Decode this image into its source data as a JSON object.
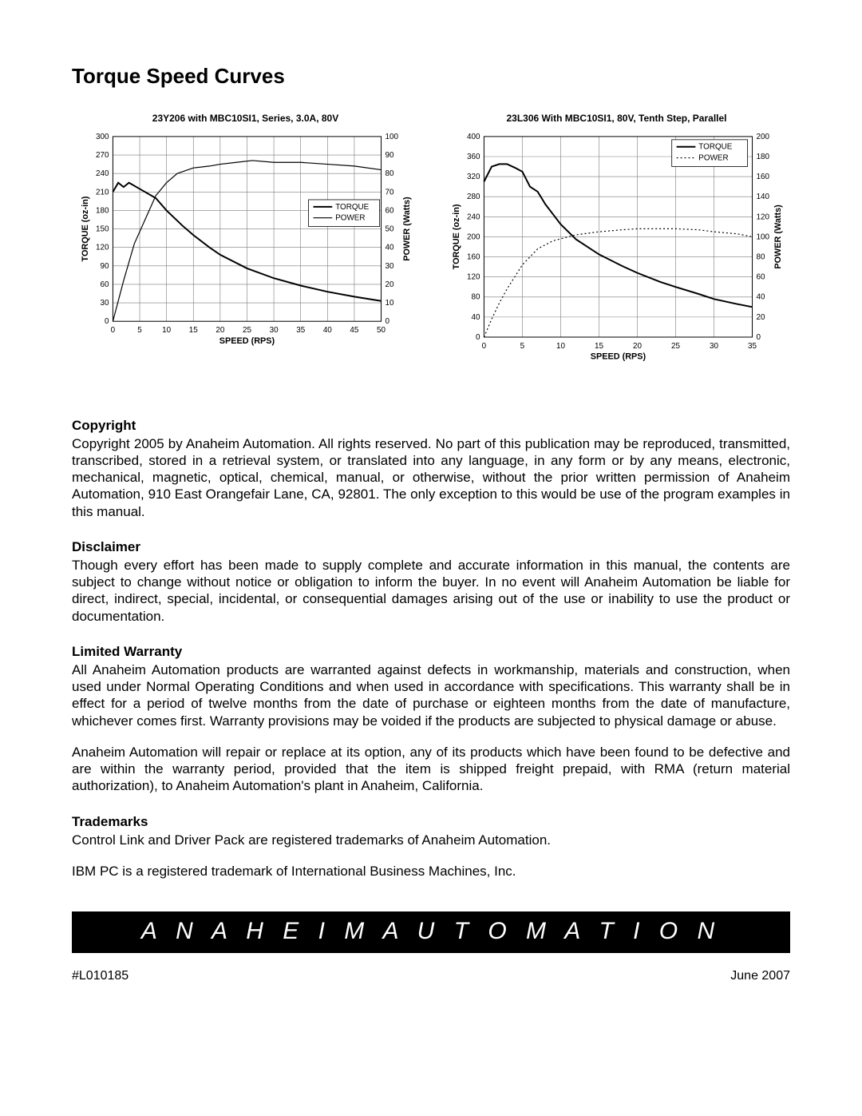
{
  "title": "Torque Speed Curves",
  "chart1": {
    "type": "line",
    "title": "23Y206 with MBC10SI1, Series, 3.0A, 80V",
    "x_axis": {
      "label": "SPEED (RPS)",
      "min": 0,
      "max": 50,
      "step": 5
    },
    "y_left": {
      "label": "TORQUE (oz-in)",
      "min": 0,
      "max": 300,
      "step": 30
    },
    "y_right": {
      "label": "POWER (Watts)",
      "min": 0,
      "max": 100,
      "step": 10
    },
    "legend": {
      "items": [
        "TORQUE",
        "POWER"
      ],
      "position": "inside-right"
    },
    "title_fontsize": 12,
    "axis_label_fontsize": 11,
    "tick_fontsize": 10,
    "torque_color": "#000000",
    "power_color": "#000000",
    "grid_color": "#7a7a7a",
    "background_color": "#ffffff",
    "torque_line_width": 2,
    "power_line_width": 1.2,
    "power_style": "solid",
    "torque_points_x": [
      0,
      1,
      2,
      3,
      5,
      8,
      10,
      13,
      15,
      18,
      20,
      25,
      30,
      35,
      40,
      45,
      50
    ],
    "torque_points_y": [
      210,
      225,
      218,
      225,
      215,
      200,
      180,
      155,
      140,
      120,
      108,
      86,
      70,
      58,
      48,
      40,
      33
    ],
    "power_points_x": [
      0,
      2,
      4,
      6,
      8,
      10,
      12,
      15,
      18,
      20,
      23,
      26,
      30,
      35,
      40,
      45,
      50
    ],
    "power_points_y": [
      0,
      22,
      42,
      55,
      68,
      75,
      80,
      83,
      84,
      85,
      86,
      87,
      86,
      86,
      85,
      84,
      82
    ]
  },
  "chart2": {
    "type": "line",
    "title": "23L306 With MBC10SI1, 80V, Tenth Step, Parallel",
    "x_axis": {
      "label": "SPEED (RPS)",
      "min": 0,
      "max": 35,
      "step": 5
    },
    "y_left": {
      "label": "TORQUE (oz-in)",
      "min": 0,
      "max": 400,
      "step": 40
    },
    "y_right": {
      "label": "POWER (Watts)",
      "min": 0,
      "max": 200,
      "step": 20
    },
    "legend": {
      "items": [
        "TORQUE",
        "POWER"
      ],
      "position": "top-right-box"
    },
    "title_fontsize": 12,
    "axis_label_fontsize": 11,
    "tick_fontsize": 10,
    "torque_color": "#000000",
    "power_color": "#000000",
    "grid_color": "#7a7a7a",
    "background_color": "#ffffff",
    "torque_line_width": 2,
    "power_line_width": 1.2,
    "power_style": "dotted",
    "torque_points_x": [
      0,
      1,
      2,
      3,
      4,
      5,
      6,
      7,
      8,
      9,
      10,
      12,
      15,
      18,
      20,
      23,
      25,
      28,
      30,
      33,
      35
    ],
    "torque_points_y": [
      310,
      340,
      345,
      345,
      338,
      330,
      300,
      290,
      265,
      245,
      225,
      195,
      165,
      142,
      128,
      110,
      100,
      86,
      76,
      66,
      60
    ],
    "power_points_x": [
      0,
      1,
      2,
      3,
      4,
      5,
      6,
      7,
      8,
      9,
      10,
      12,
      15,
      18,
      20,
      23,
      25,
      28,
      30,
      33,
      35
    ],
    "power_points_y": [
      0,
      18,
      34,
      48,
      60,
      72,
      80,
      88,
      92,
      96,
      98,
      102,
      105,
      107,
      108,
      108,
      108,
      107,
      105,
      103,
      100
    ]
  },
  "sections": {
    "copyright_heading": "Copyright",
    "copyright_body": "Copyright 2005 by Anaheim Automation. All rights reserved. No part of this publication may be reproduced, transmitted, transcribed, stored in a retrieval system, or translated into any language, in any form or by any means, electronic, mechanical, magnetic, optical, chemical, manual, or otherwise, without the prior written permission of Anaheim Automation, 910 East Orangefair Lane, CA, 92801. The only exception to this would be use of the program examples in this manual.",
    "disclaimer_heading": "Disclaimer",
    "disclaimer_body": "Though every effort has been made to supply complete and accurate information in this manual, the contents are subject to change without notice or obligation to inform the buyer. In no event will Anaheim Automation be liable for direct, indirect, special, incidental, or consequential damages arising out of the use or inability to use the product or documentation.",
    "warranty_heading": "Limited Warranty",
    "warranty_body1": "All Anaheim Automation products are warranted against defects in  workmanship, materials and construction, when used under Normal Operating Conditions and when used in accordance with specifications. This warranty shall be in effect for a period of twelve months from the date of purchase or eighteen months from the date of manufacture, whichever comes first. Warranty provisions may be voided if the products are subjected to physical damage or abuse.",
    "warranty_body2": "Anaheim Automation will repair or replace at its option, any of its products which have been found to be defective and are within the warranty period, provided that the item is shipped freight prepaid, with RMA (return material authorization), to Anaheim Automation's plant in Anaheim, California.",
    "trademarks_heading": "Trademarks",
    "trademarks_body1": "Control Link and Driver Pack are registered trademarks of Anaheim Automation.",
    "trademarks_body2": "IBM PC is a registered trademark of International Business Machines, Inc."
  },
  "banner": "A N A H E I M   A U T O M A T I O N",
  "footer": {
    "left": "#L010185",
    "right": "June 2007"
  }
}
